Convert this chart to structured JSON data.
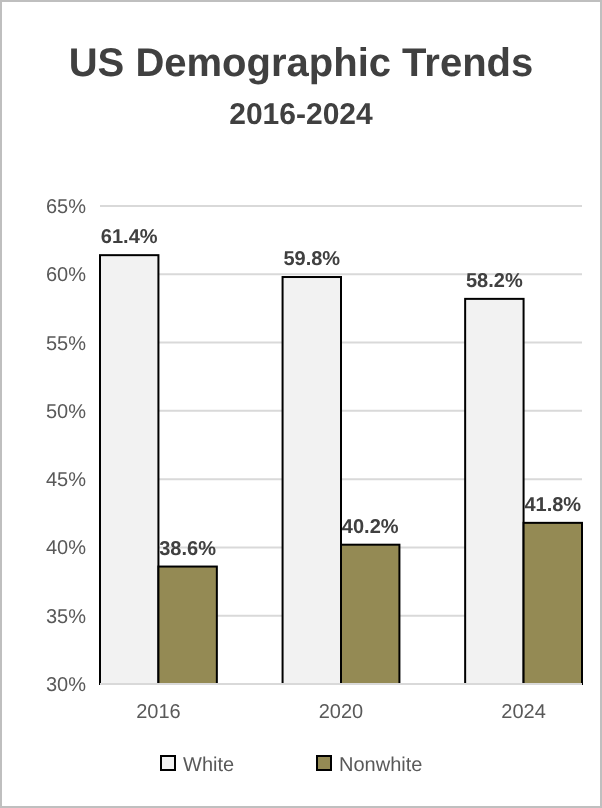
{
  "chart_data": {
    "type": "bar",
    "title": "US Demographic Trends",
    "subtitle": "2016-2024",
    "categories": [
      "2016",
      "2020",
      "2024"
    ],
    "series": [
      {
        "name": "White",
        "color": "#f2f2f2",
        "values": [
          61.4,
          59.8,
          58.2
        ],
        "value_labels": [
          "61.4%",
          "59.8%",
          "58.2%"
        ]
      },
      {
        "name": "Nonwhite",
        "color": "#948a54",
        "values": [
          38.6,
          40.2,
          41.8
        ],
        "value_labels": [
          "38.6%",
          "40.2%",
          "41.8%"
        ]
      }
    ],
    "ylim": [
      30,
      65
    ],
    "yticks": [
      {
        "value": 30,
        "label": "30%"
      },
      {
        "value": 35,
        "label": "35%"
      },
      {
        "value": 40,
        "label": "40%"
      },
      {
        "value": 45,
        "label": "45%"
      },
      {
        "value": 50,
        "label": "50%"
      },
      {
        "value": 55,
        "label": "55%"
      },
      {
        "value": 60,
        "label": "60%"
      },
      {
        "value": 65,
        "label": "65%"
      }
    ],
    "grid": "y",
    "legend": "bottom"
  }
}
